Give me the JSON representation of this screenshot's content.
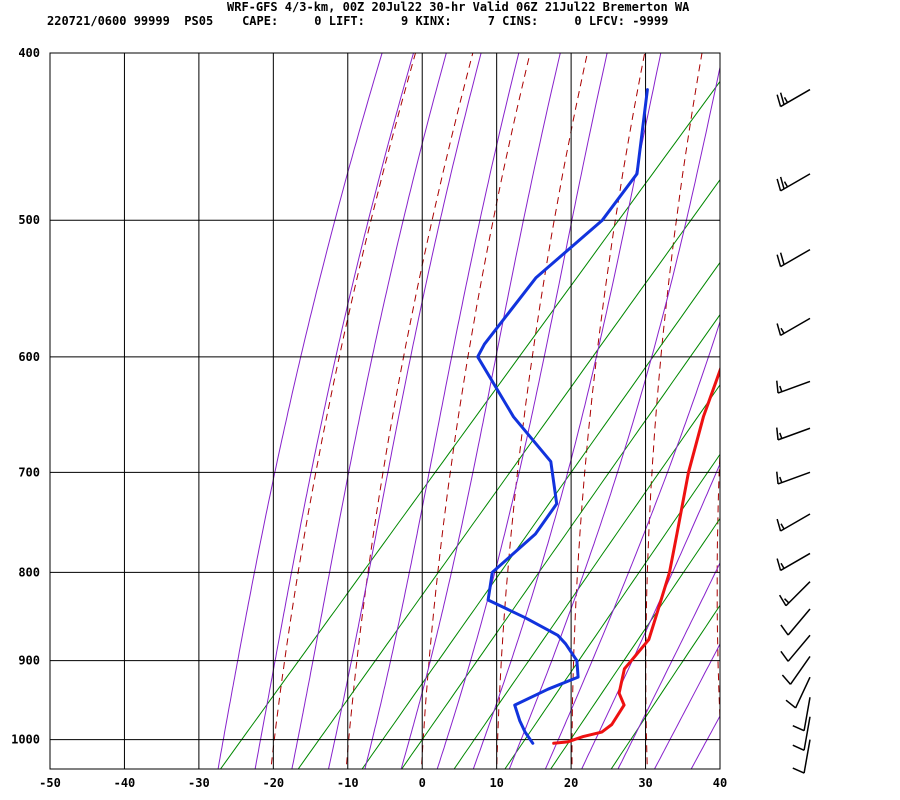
{
  "header": {
    "title": "WRF-GFS 4/3-km, 00Z 20Jul22 30-hr Valid 06Z 21Jul22 Bremerton WA",
    "indices": "220721/0600 99999  PS05    CAPE:     0 LIFT:     9 KINX:     7 CINS:     0 LFCV: -9999"
  },
  "colors": {
    "temperature": "#ee1111",
    "dewpoint": "#1133dd",
    "isotherm": "#000000",
    "dry_adiabat": "#aa0000",
    "moist_adiabat": "#8822cc",
    "mixing_ratio": "#008800"
  },
  "chart_data": {
    "type": "skew-t",
    "xlim": [
      -50,
      40
    ],
    "ylim_hpa": [
      1040,
      400
    ],
    "y_scale": "log-pressure",
    "grid": true,
    "x_ticks": [
      "-50",
      "-40",
      "-30",
      "-20",
      "-10",
      "0",
      "10",
      "20",
      "30",
      "40"
    ],
    "y_ticks": [
      "400",
      "500",
      "600",
      "700",
      "800",
      "900",
      "1000"
    ],
    "series": [
      {
        "role": "temperature",
        "points": [
          {
            "p": 1005,
            "t": 14.8
          },
          {
            "p": 1003,
            "t": 16.5
          },
          {
            "p": 996,
            "t": 18.0
          },
          {
            "p": 990,
            "t": 20.0
          },
          {
            "p": 980,
            "t": 20.5
          },
          {
            "p": 955,
            "t": 20.0
          },
          {
            "p": 940,
            "t": 18.0
          },
          {
            "p": 925,
            "t": 17.0
          },
          {
            "p": 910,
            "t": 16.0
          },
          {
            "p": 900,
            "t": 16.0
          },
          {
            "p": 875,
            "t": 16.0
          },
          {
            "p": 850,
            "t": 14.5
          },
          {
            "p": 800,
            "t": 11.3
          },
          {
            "p": 760,
            "t": 8.0
          },
          {
            "p": 700,
            "t": 2.7
          },
          {
            "p": 650,
            "t": -1.5
          },
          {
            "p": 600,
            "t": -5.3
          },
          {
            "p": 550,
            "t": -10.0
          },
          {
            "p": 500,
            "t": -16.2
          },
          {
            "p": 450,
            "t": -23.0
          },
          {
            "p": 420,
            "t": -27.5
          }
        ]
      },
      {
        "role": "dewpoint",
        "points": [
          {
            "p": 1005,
            "t": 12.0
          },
          {
            "p": 990,
            "t": 9.7
          },
          {
            "p": 975,
            "t": 7.7
          },
          {
            "p": 955,
            "t": 5.3
          },
          {
            "p": 935,
            "t": 8.0
          },
          {
            "p": 920,
            "t": 10.7
          },
          {
            "p": 900,
            "t": 8.7
          },
          {
            "p": 880,
            "t": 5.3
          },
          {
            "p": 870,
            "t": 3.3
          },
          {
            "p": 850,
            "t": -3.0
          },
          {
            "p": 830,
            "t": -10.0
          },
          {
            "p": 800,
            "t": -12.5
          },
          {
            "p": 760,
            "t": -11.0
          },
          {
            "p": 730,
            "t": -11.5
          },
          {
            "p": 690,
            "t": -17.0
          },
          {
            "p": 650,
            "t": -27.0
          },
          {
            "p": 600,
            "t": -38.5
          },
          {
            "p": 590,
            "t": -39.0
          },
          {
            "p": 540,
            "t": -39.5
          },
          {
            "p": 500,
            "t": -37.0
          },
          {
            "p": 470,
            "t": -37.5
          },
          {
            "p": 420,
            "t": -45.5
          }
        ]
      }
    ],
    "wind_barbs": [
      {
        "p": 420,
        "dir": 240,
        "kt": 25
      },
      {
        "p": 470,
        "dir": 240,
        "kt": 25
      },
      {
        "p": 520,
        "dir": 240,
        "kt": 20
      },
      {
        "p": 570,
        "dir": 240,
        "kt": 15
      },
      {
        "p": 620,
        "dir": 250,
        "kt": 15
      },
      {
        "p": 660,
        "dir": 250,
        "kt": 15
      },
      {
        "p": 700,
        "dir": 250,
        "kt": 15
      },
      {
        "p": 740,
        "dir": 240,
        "kt": 15
      },
      {
        "p": 780,
        "dir": 240,
        "kt": 15
      },
      {
        "p": 810,
        "dir": 225,
        "kt": 15
      },
      {
        "p": 840,
        "dir": 220,
        "kt": 10
      },
      {
        "p": 870,
        "dir": 220,
        "kt": 10
      },
      {
        "p": 895,
        "dir": 215,
        "kt": 10
      },
      {
        "p": 920,
        "dir": 205,
        "kt": 10
      },
      {
        "p": 945,
        "dir": 190,
        "kt": 10
      },
      {
        "p": 970,
        "dir": 190,
        "kt": 10
      },
      {
        "p": 1000,
        "dir": 190,
        "kt": 10
      }
    ]
  }
}
